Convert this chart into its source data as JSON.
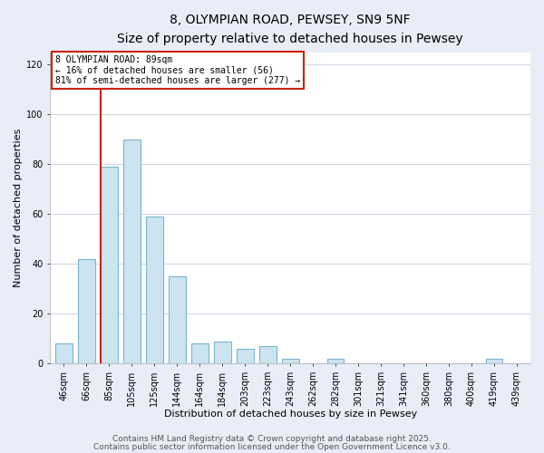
{
  "title": "8, OLYMPIAN ROAD, PEWSEY, SN9 5NF",
  "subtitle": "Size of property relative to detached houses in Pewsey",
  "xlabel": "Distribution of detached houses by size in Pewsey",
  "ylabel": "Number of detached properties",
  "bar_labels": [
    "46sqm",
    "66sqm",
    "85sqm",
    "105sqm",
    "125sqm",
    "144sqm",
    "164sqm",
    "184sqm",
    "203sqm",
    "223sqm",
    "243sqm",
    "262sqm",
    "282sqm",
    "301sqm",
    "321sqm",
    "341sqm",
    "360sqm",
    "380sqm",
    "400sqm",
    "419sqm",
    "439sqm"
  ],
  "bar_values": [
    8,
    42,
    79,
    90,
    59,
    35,
    8,
    9,
    6,
    7,
    2,
    0,
    2,
    0,
    0,
    0,
    0,
    0,
    0,
    2,
    0
  ],
  "bar_color": "#cce4f0",
  "bar_edgecolor": "#7ab4d0",
  "highlight_color": "#cc2200",
  "vline_index": 2,
  "annotation_lines": [
    "8 OLYMPIAN ROAD: 89sqm",
    "← 16% of detached houses are smaller (56)",
    "81% of semi-detached houses are larger (277) →"
  ],
  "ylim": [
    0,
    125
  ],
  "yticks": [
    0,
    20,
    40,
    60,
    80,
    100,
    120
  ],
  "footer1": "Contains HM Land Registry data © Crown copyright and database right 2025.",
  "footer2": "Contains public sector information licensed under the Open Government Licence v3.0.",
  "outer_background": "#e8edf8",
  "plot_background": "#ffffff",
  "grid_color": "#d0d8e8",
  "title_fontsize": 10,
  "subtitle_fontsize": 9,
  "tick_fontsize": 7,
  "label_fontsize": 8,
  "footer_fontsize": 6.5
}
